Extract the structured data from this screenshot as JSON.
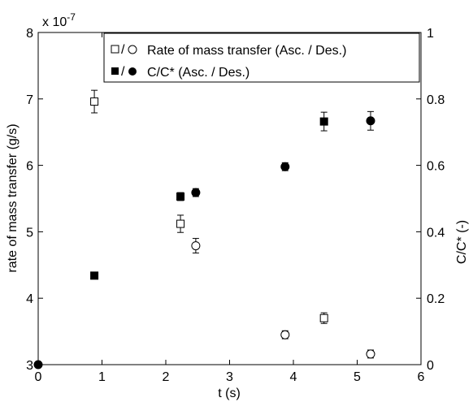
{
  "chart_data": {
    "type": "scatter",
    "x": {
      "label": "t (s)",
      "range": [
        0,
        6
      ],
      "ticks": [
        "0",
        "1",
        "2",
        "3",
        "4",
        "5",
        "6"
      ]
    },
    "y_left": {
      "label": "rate of mass transfer (g/s)",
      "range": [
        3,
        8
      ],
      "scale_label": "x 10",
      "scale_exponent": "-7",
      "ticks": [
        "3",
        "4",
        "5",
        "6",
        "7",
        "8"
      ]
    },
    "y_right": {
      "label": "C/C* (-)",
      "range": [
        0,
        1
      ],
      "ticks": [
        "0",
        "0.2",
        "0.4",
        "0.6",
        "0.8",
        "1"
      ]
    },
    "legend": {
      "placement": "top-right",
      "entries": [
        {
          "markers": "open-square/open-circle",
          "separator": "/",
          "label": "Rate of mass transfer (Asc. / Des.)"
        },
        {
          "markers": "filled-square/filled-circle",
          "separator": "/",
          "label": "C/C* (Asc. / Des.)"
        }
      ]
    },
    "series": [
      {
        "marker": "open-square",
        "axis": "left",
        "points": [
          {
            "x": 0.88,
            "y": 6.96,
            "err": 0.17
          },
          {
            "x": 2.23,
            "y": 5.12,
            "err": 0.13
          },
          {
            "x": 4.48,
            "y": 3.7,
            "err": 0.08
          }
        ]
      },
      {
        "marker": "open-circle",
        "axis": "left",
        "points": [
          {
            "x": 2.47,
            "y": 4.79,
            "err": 0.11
          },
          {
            "x": 3.87,
            "y": 3.45,
            "err": 0.06
          },
          {
            "x": 5.21,
            "y": 3.16,
            "err": 0.06
          }
        ]
      },
      {
        "marker": "filled-square",
        "axis": "right",
        "points": [
          {
            "x": 0.88,
            "y": 0.268,
            "err": 0.0
          },
          {
            "x": 2.23,
            "y": 0.506,
            "err": 0.012
          },
          {
            "x": 4.48,
            "y": 0.732,
            "err": 0.028
          }
        ]
      },
      {
        "marker": "filled-circle",
        "axis": "right",
        "points": [
          {
            "x": 0.0,
            "y": 0.0,
            "err": 0.0
          },
          {
            "x": 2.47,
            "y": 0.518,
            "err": 0.012
          },
          {
            "x": 3.87,
            "y": 0.596,
            "err": 0.012
          },
          {
            "x": 5.21,
            "y": 0.734,
            "err": 0.028
          }
        ]
      }
    ],
    "grid": false,
    "colors": {
      "ink": "#000000",
      "background": "#ffffff"
    }
  }
}
